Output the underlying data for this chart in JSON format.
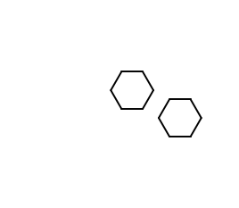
{
  "bg_color": "#ffffff",
  "line_color": "#000000",
  "text_color": "#000000",
  "cyan_color": "#00aacc",
  "figsize": [
    2.68,
    2.33
  ],
  "dpi": 100
}
